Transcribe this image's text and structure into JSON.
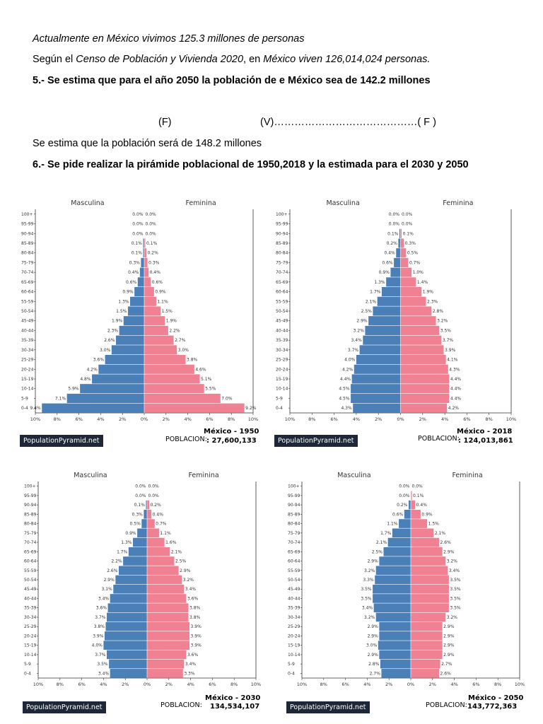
{
  "text": {
    "line1": "Actualmente en México vivimos 125.3 millones de personas",
    "line2_a": "Según el ",
    "line2_b": "Censo de Población y Vivienda 2020",
    "line2_c": ", en ",
    "line2_d": "México viven 126,014,024 personas.",
    "line3": "5.- Se estima que para el año 2050 la población de e México sea de 142.2 millones",
    "line4_f": "(F)",
    "line4_v": "(V)……………………………………(  F  )",
    "line5": "Se estima que la población será de 148.2 millones",
    "line6": "6.- Se pide realizar la pirámide poblacional de 1950,2018 y la estimada para el 2030 y 2050"
  },
  "colors": {
    "male": "#4a7fb8",
    "female": "#ef8192",
    "axis": "#333333"
  },
  "labels": {
    "male": "Masculina",
    "female": "Feminina",
    "site": "PopulationPyramid.net",
    "poblacion": "POBLACION:"
  },
  "chart_data": [
    {
      "type": "bar",
      "title": "México - 1950",
      "population": ": 27,600,133",
      "categories": [
        "100+",
        "95-99",
        "90-94",
        "85-89",
        "80-84",
        "75-79",
        "70-74",
        "65-69",
        "60-64",
        "55-59",
        "50-54",
        "45-49",
        "40-44",
        "35-39",
        "30-34",
        "25-29",
        "20-24",
        "15-19",
        "10-14",
        "5-9",
        "0-4"
      ],
      "series": [
        {
          "name": "Masculina",
          "values": [
            0.0,
            0.0,
            0.0,
            0.1,
            0.1,
            0.3,
            0.4,
            0.6,
            0.9,
            1.3,
            1.5,
            1.9,
            2.3,
            2.6,
            3.0,
            3.6,
            4.2,
            4.8,
            5.9,
            7.1,
            9.4
          ]
        },
        {
          "name": "Feminina",
          "values": [
            0.0,
            0.0,
            0.0,
            0.1,
            0.2,
            0.3,
            0.4,
            0.6,
            0.9,
            1.1,
            1.5,
            1.9,
            2.2,
            2.7,
            3.0,
            3.8,
            4.6,
            5.1,
            5.5,
            7.0,
            9.2
          ]
        }
      ],
      "male_labels": [
        "0.0%",
        "0.0%",
        "0.0%",
        "0.1%",
        "0.1%",
        "0.3%",
        "0.4%",
        "0.6%",
        "0.9%",
        "1.3%",
        "1.5%",
        "1.9%",
        "2.3%",
        "2.6%",
        "3.0%",
        "3.6%",
        "4.2%",
        "4.8%",
        "5.9%",
        "7.1%",
        "9.4%"
      ],
      "female_labels": [
        "0.0%",
        "0.0%",
        "0.0%",
        "0.1%",
        "0.2%",
        "0.3%",
        "0.4%",
        "0.6%",
        "0.9%",
        "1.1%",
        "1.5%",
        "1.9%",
        "2.2%",
        "2.7%",
        "3.0%",
        "3.8%",
        "4.6%",
        "5.1%",
        "5.5%",
        "7.0%",
        "9.2%"
      ],
      "xticks": [
        "10%",
        "8%",
        "6%",
        "4%",
        "2%",
        "0%",
        "2%",
        "4%",
        "6%",
        "8%",
        "10%"
      ],
      "xlim": [
        -10,
        10
      ]
    },
    {
      "type": "bar",
      "title": "México - 2018",
      "population": ": 124,013,861",
      "categories": [
        "100+",
        "95-99",
        "90-94",
        "85-89",
        "80-84",
        "75-79",
        "70-74",
        "65-69",
        "60-64",
        "55-59",
        "50-54",
        "45-49",
        "40-44",
        "35-39",
        "30-34",
        "25-29",
        "20-24",
        "15-19",
        "10-14",
        "5-9",
        "0-4"
      ],
      "series": [
        {
          "name": "Masculina",
          "values": [
            0.0,
            0.0,
            0.1,
            0.2,
            0.4,
            0.6,
            0.9,
            1.3,
            1.7,
            2.1,
            2.5,
            2.9,
            3.2,
            3.4,
            3.7,
            4.0,
            4.2,
            4.4,
            4.5,
            4.5,
            4.3
          ]
        },
        {
          "name": "Feminina",
          "values": [
            0.0,
            0.0,
            0.1,
            0.3,
            0.5,
            0.7,
            1.0,
            1.4,
            1.9,
            2.3,
            2.8,
            3.2,
            3.5,
            3.7,
            3.9,
            4.1,
            4.3,
            4.4,
            4.4,
            4.4,
            4.2
          ]
        }
      ],
      "male_labels": [
        "0.0%",
        "0.0%",
        "0.1%",
        "0.2%",
        "0.4%",
        "0.6%",
        "0.9%",
        "1.3%",
        "1.7%",
        "2.1%",
        "2.5%",
        "2.9%",
        "3.2%",
        "3.4%",
        "3.7%",
        "4.0%",
        "4.2%",
        "4.4%",
        "4.5%",
        "4.5%",
        "4.3%"
      ],
      "female_labels": [
        "0.0%",
        "0.0%",
        "0.1%",
        "0.3%",
        "0.5%",
        "0.7%",
        "1.0%",
        "1.4%",
        "1.9%",
        "2.3%",
        "2.8%",
        "3.2%",
        "3.5%",
        "3.7%",
        "3.9%",
        "4.1%",
        "4.3%",
        "4.4%",
        "4.4%",
        "4.4%",
        "4.2%"
      ],
      "xticks": [
        "10%",
        "8%",
        "6%",
        "4%",
        "2%",
        "0%",
        "2%",
        "4%",
        "6%",
        "8%",
        "10%"
      ],
      "xlim": [
        -10,
        10
      ]
    },
    {
      "type": "bar",
      "title": "México - 2030",
      "population": "134,534,107",
      "categories": [
        "100+",
        "95-99",
        "90-94",
        "85-89",
        "80-84",
        "75-79",
        "70-74",
        "65-69",
        "60-64",
        "55-59",
        "50-54",
        "45-49",
        "40-44",
        "35-39",
        "30-34",
        "25-29",
        "20-24",
        "15-19",
        "10-14",
        "5-9",
        "0-4"
      ],
      "series": [
        {
          "name": "Masculina",
          "values": [
            0.0,
            0.0,
            0.1,
            0.3,
            0.5,
            0.9,
            1.3,
            1.7,
            2.2,
            2.6,
            2.9,
            3.1,
            3.4,
            3.6,
            3.7,
            3.8,
            3.9,
            4.0,
            3.7,
            3.5,
            3.4
          ]
        },
        {
          "name": "Feminina",
          "values": [
            0.0,
            0.0,
            0.2,
            0.4,
            0.7,
            1.1,
            1.6,
            2.1,
            2.5,
            2.9,
            3.2,
            3.4,
            3.6,
            3.8,
            3.8,
            3.9,
            3.9,
            3.9,
            3.6,
            3.4,
            3.3
          ]
        }
      ],
      "male_labels": [
        "0.0%",
        "0.0%",
        "0.1%",
        "0.3%",
        "0.5%",
        "0.9%",
        "1.3%",
        "1.7%",
        "2.2%",
        "2.6%",
        "2.9%",
        "3.1%",
        "3.4%",
        "3.6%",
        "3.7%",
        "3.8%",
        "3.9%",
        "4.0%",
        "3.7%",
        "3.5%",
        "3.4%"
      ],
      "female_labels": [
        "0.0%",
        "0.0%",
        "0.2%",
        "0.4%",
        "0.7%",
        "1.1%",
        "1.6%",
        "2.1%",
        "2.5%",
        "2.9%",
        "3.2%",
        "3.4%",
        "3.6%",
        "3.8%",
        "3.8%",
        "3.9%",
        "3.9%",
        "3.9%",
        "3.6%",
        "3.4%",
        "3.3%"
      ],
      "xticks": [
        "10%",
        "8%",
        "6%",
        "4%",
        "2%",
        "0%",
        "2%",
        "4%",
        "6%",
        "8%",
        "10%"
      ],
      "xlim": [
        -10,
        10
      ]
    },
    {
      "type": "bar",
      "title": "México - 2050",
      "population": "143,772,363",
      "categories": [
        "100+",
        "95-99",
        "90-94",
        "85-89",
        "80-84",
        "75-79",
        "70-74",
        "65-69",
        "60-64",
        "55-59",
        "50-54",
        "45-49",
        "40-44",
        "35-39",
        "30-34",
        "25-29",
        "20-24",
        "15-19",
        "10-14",
        "5-9",
        "0-4"
      ],
      "series": [
        {
          "name": "Masculina",
          "values": [
            0.0,
            0.0,
            0.2,
            0.6,
            1.1,
            1.7,
            2.1,
            2.5,
            2.9,
            3.2,
            3.3,
            3.5,
            3.5,
            3.4,
            3.2,
            2.9,
            2.9,
            3.0,
            2.9,
            2.8,
            2.7
          ]
        },
        {
          "name": "Feminina",
          "values": [
            0.0,
            0.1,
            0.4,
            0.9,
            1.5,
            2.1,
            2.6,
            2.9,
            3.2,
            3.4,
            3.5,
            3.5,
            3.5,
            3.5,
            3.2,
            2.9,
            2.9,
            2.9,
            2.9,
            2.7,
            2.6
          ]
        }
      ],
      "male_labels": [
        "0.0%",
        "0.0%",
        "0.2%",
        "0.6%",
        "1.1%",
        "1.7%",
        "2.1%",
        "2.5%",
        "2.9%",
        "3.2%",
        "3.3%",
        "3.5%",
        "3.5%",
        "3.4%",
        "3.2%",
        "2.9%",
        "2.9%",
        "3.0%",
        "2.9%",
        "2.8%",
        "2.7%"
      ],
      "female_labels": [
        "0.0%",
        "0.1%",
        "0.4%",
        "0.9%",
        "1.5%",
        "2.1%",
        "2.6%",
        "2.9%",
        "3.2%",
        "3.4%",
        "3.5%",
        "3.5%",
        "3.5%",
        "3.5%",
        "3.2%",
        "2.9%",
        "2.9%",
        "2.9%",
        "2.9%",
        "2.7%",
        "2.6%"
      ],
      "xticks": [
        "10%",
        "8%",
        "6%",
        "4%",
        "2%",
        "0%",
        "2%",
        "4%",
        "6%",
        "8%",
        "10%"
      ],
      "xlim": [
        -10,
        10
      ]
    }
  ]
}
